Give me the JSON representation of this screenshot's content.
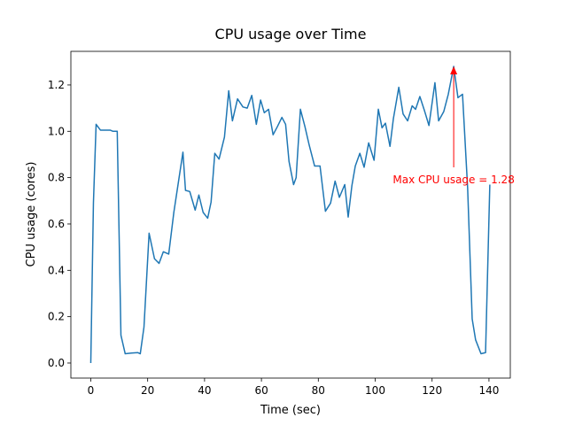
{
  "chart_data": {
    "type": "line",
    "title": "CPU usage over Time",
    "x_label": "Time (sec)",
    "y_label": "CPU usage (cores)",
    "x": [
      0,
      0.93,
      1.87,
      3.4,
      6.8,
      7.8,
      9.3,
      10.6,
      12.1,
      14.3,
      16.5,
      17.4,
      18.7,
      20.5,
      22.4,
      24,
      25.5,
      27.4,
      29.2,
      30.8,
      32.4,
      33.3,
      34.8,
      36.7,
      38,
      39.5,
      41.1,
      42.3,
      43.6,
      45.1,
      47,
      48.5,
      49.8,
      51.6,
      53.5,
      55,
      56.6,
      58.2,
      59.7,
      61,
      62.5,
      64.1,
      65.6,
      67.2,
      68.5,
      69.7,
      71.3,
      72.2,
      73.7,
      75.3,
      76.8,
      78.7,
      80.6,
      82.5,
      84.3,
      85.9,
      87.4,
      89.3,
      90.5,
      91.8,
      93,
      94.6,
      96.1,
      97.7,
      99.6,
      101.1,
      102.4,
      103.6,
      105.2,
      106.4,
      108.3,
      109.8,
      111.4,
      113,
      114.2,
      115.7,
      117.3,
      118.9,
      121,
      122.3,
      124.1,
      125.7,
      127.6,
      129.1,
      130.7,
      132.5,
      134.1,
      135.3,
      137.2,
      138.8,
      140.3
    ],
    "series": [
      {
        "name": "CPU usage",
        "color": "#1f77b4",
        "values": [
          0,
          0.69,
          1.03,
          1.005,
          1.005,
          1.0,
          1.0,
          0.12,
          0.04,
          0.043,
          0.045,
          0.04,
          0.155,
          0.56,
          0.45,
          0.43,
          0.48,
          0.47,
          0.65,
          0.78,
          0.91,
          0.745,
          0.74,
          0.66,
          0.725,
          0.65,
          0.625,
          0.695,
          0.905,
          0.88,
          0.975,
          1.175,
          1.045,
          1.14,
          1.105,
          1.1,
          1.155,
          1.03,
          1.135,
          1.08,
          1.095,
          0.985,
          1.02,
          1.06,
          1.03,
          0.87,
          0.77,
          0.8,
          1.095,
          1.02,
          0.94,
          0.85,
          0.85,
          0.655,
          0.69,
          0.785,
          0.715,
          0.77,
          0.63,
          0.765,
          0.85,
          0.905,
          0.845,
          0.95,
          0.875,
          1.095,
          1.015,
          1.035,
          0.935,
          1.055,
          1.19,
          1.075,
          1.045,
          1.11,
          1.095,
          1.15,
          1.09,
          1.025,
          1.21,
          1.045,
          1.085,
          1.16,
          1.28,
          1.145,
          1.16,
          0.755,
          0.19,
          0.1,
          0.04,
          0.045,
          0.77
        ]
      }
    ],
    "annotations": [
      {
        "text": "Max CPU usage = 1.28",
        "color": "#ff0000"
      }
    ],
    "xlim": [
      -7,
      147.5
    ],
    "ylim": [
      -0.065,
      1.345
    ],
    "xticks": [
      0,
      20,
      40,
      60,
      80,
      100,
      120,
      140
    ],
    "yticks": [
      {
        "value": 0,
        "label": "0.0"
      },
      0.2,
      0.4,
      0.6,
      0.8,
      {
        "value": 1,
        "label": "1.0"
      },
      1.2
    ],
    "grid": false
  }
}
